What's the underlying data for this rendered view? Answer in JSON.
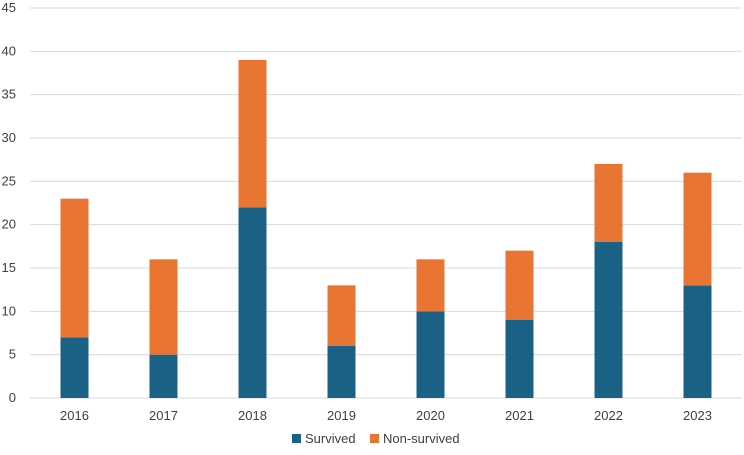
{
  "chart_data": {
    "type": "bar",
    "stacked": true,
    "categories": [
      "2016",
      "2017",
      "2018",
      "2019",
      "2020",
      "2021",
      "2022",
      "2023"
    ],
    "series": [
      {
        "name": "Survived",
        "values": [
          7,
          5,
          22,
          6,
          10,
          9,
          18,
          13
        ],
        "color": "#1b6185"
      },
      {
        "name": "Non-survived",
        "values": [
          16,
          11,
          17,
          7,
          6,
          8,
          9,
          13
        ],
        "color": "#e97532"
      }
    ],
    "ylim": [
      0,
      45
    ],
    "yticks": [
      0,
      5,
      10,
      15,
      20,
      25,
      30,
      35,
      40,
      45
    ],
    "grid": true,
    "legend_position": "bottom"
  },
  "colors": {
    "grid": "#d9d9d9",
    "axis_text": "#404040"
  }
}
